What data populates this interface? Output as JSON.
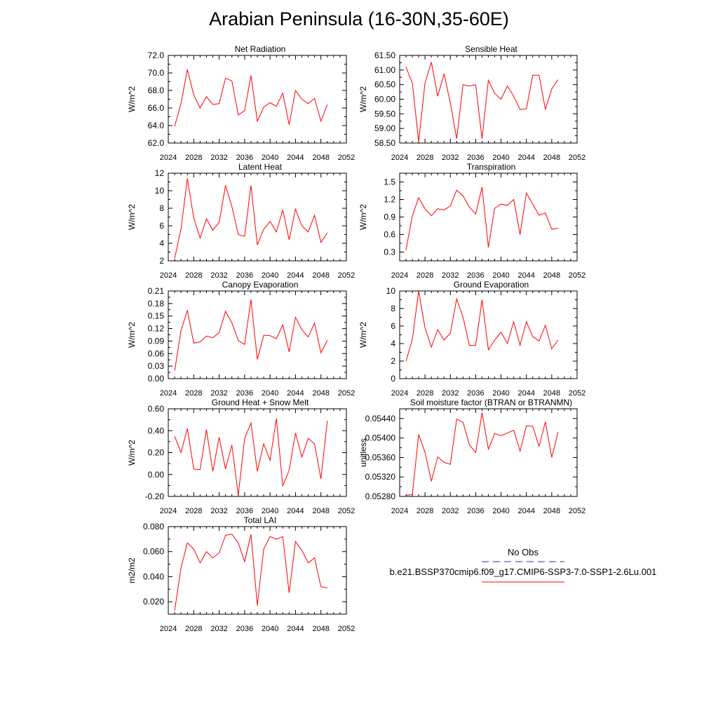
{
  "page_title": "Arabian Peninsula (16-30N,35-60E)",
  "colors": {
    "series": "#ff0000",
    "obs": "#3333aa",
    "axis": "#000000"
  },
  "legend": {
    "obs_label": "No Obs",
    "case_label": "b.e21.BSSP370cmip6.f09_g17.CMIP6-SSP3-7.0-SSP1-2.6Lu.001"
  },
  "chart_data": [
    {
      "type": "line",
      "title": "Net Radiation",
      "ylabel": "W/m^2",
      "xlim": [
        2024,
        2052
      ],
      "ylim": [
        62.0,
        72.0
      ],
      "x_ticks": [
        "2024",
        "2028",
        "2032",
        "2036",
        "2040",
        "2044",
        "2048",
        "2052"
      ],
      "y_ticks": [
        "62.0",
        "64.0",
        "66.0",
        "68.0",
        "70.0",
        "72.0"
      ],
      "x": [
        2025,
        2026,
        2027,
        2028,
        2029,
        2030,
        2031,
        2032,
        2033,
        2034,
        2035,
        2036,
        2037,
        2038,
        2039,
        2040,
        2041,
        2042,
        2043,
        2044,
        2045,
        2046,
        2047,
        2048,
        2049
      ],
      "series": [
        {
          "values": [
            63.9,
            66.5,
            70.4,
            67.5,
            66.0,
            67.3,
            66.4,
            66.5,
            69.4,
            69.1,
            65.2,
            65.7,
            69.7,
            64.5,
            66.1,
            66.6,
            66.2,
            67.7,
            64.1,
            68.0,
            67.0,
            66.5,
            67.1,
            64.5,
            66.4
          ]
        }
      ]
    },
    {
      "type": "line",
      "title": "Sensible Heat",
      "ylabel": "W/m^2",
      "xlim": [
        2024,
        2052
      ],
      "ylim": [
        58.5,
        61.5
      ],
      "x_ticks": [
        "2024",
        "2028",
        "2032",
        "2036",
        "2040",
        "2044",
        "2048",
        "2052"
      ],
      "y_ticks": [
        "58.50",
        "59.00",
        "59.50",
        "60.00",
        "60.50",
        "61.00",
        "61.50"
      ],
      "x": [
        2025,
        2026,
        2027,
        2028,
        2029,
        2030,
        2031,
        2032,
        2033,
        2034,
        2035,
        2036,
        2037,
        2038,
        2039,
        2040,
        2041,
        2042,
        2043,
        2044,
        2045,
        2046,
        2047,
        2048,
        2049
      ],
      "series": [
        {
          "values": [
            61.1,
            60.55,
            58.55,
            60.55,
            61.27,
            60.1,
            60.87,
            59.87,
            58.65,
            60.5,
            60.45,
            60.5,
            58.65,
            60.65,
            60.2,
            60.0,
            60.45,
            60.1,
            59.65,
            59.67,
            60.82,
            60.82,
            59.65,
            60.35,
            60.67
          ]
        }
      ]
    },
    {
      "type": "line",
      "title": "Latent Heat",
      "ylabel": "W/m^2",
      "xlim": [
        2024,
        2052
      ],
      "ylim": [
        2,
        12
      ],
      "x_ticks": [
        "2024",
        "2028",
        "2032",
        "2036",
        "2040",
        "2044",
        "2048",
        "2052"
      ],
      "y_ticks": [
        "2",
        "4",
        "6",
        "8",
        "10",
        "12"
      ],
      "x": [
        2025,
        2026,
        2027,
        2028,
        2029,
        2030,
        2031,
        2032,
        2033,
        2034,
        2035,
        2036,
        2037,
        2038,
        2039,
        2040,
        2041,
        2042,
        2043,
        2044,
        2045,
        2046,
        2047,
        2048,
        2049
      ],
      "series": [
        {
          "values": [
            2.3,
            5.6,
            11.4,
            6.9,
            4.6,
            6.8,
            5.5,
            6.4,
            10.6,
            8.2,
            5.0,
            4.8,
            10.6,
            3.8,
            5.6,
            6.5,
            5.3,
            7.8,
            4.4,
            7.9,
            6.0,
            5.3,
            7.2,
            4.1,
            5.2
          ]
        }
      ]
    },
    {
      "type": "line",
      "title": "Transpiration",
      "ylabel": "W/m^2",
      "xlim": [
        2024,
        2052
      ],
      "ylim": [
        0.15,
        1.65
      ],
      "x_ticks": [
        "2024",
        "2028",
        "2032",
        "2036",
        "2040",
        "2044",
        "2048",
        "2052"
      ],
      "y_ticks": [
        "0.3",
        "0.6",
        "0.9",
        "1.2",
        "1.5"
      ],
      "x": [
        2025,
        2026,
        2027,
        2028,
        2029,
        2030,
        2031,
        2032,
        2033,
        2034,
        2035,
        2036,
        2037,
        2038,
        2039,
        2040,
        2041,
        2042,
        2043,
        2044,
        2045,
        2046,
        2047,
        2048,
        2049
      ],
      "series": [
        {
          "values": [
            0.34,
            0.92,
            1.23,
            1.04,
            0.92,
            1.04,
            1.02,
            1.09,
            1.36,
            1.26,
            1.07,
            0.95,
            1.41,
            0.38,
            1.05,
            1.12,
            1.1,
            1.2,
            0.6,
            1.31,
            1.12,
            0.93,
            0.97,
            0.69,
            0.71
          ]
        }
      ]
    },
    {
      "type": "line",
      "title": "Canopy Evaporation",
      "ylabel": "W/m^2",
      "xlim": [
        2024,
        2052
      ],
      "ylim": [
        0.0,
        0.21
      ],
      "x_ticks": [
        "2024",
        "2028",
        "2032",
        "2036",
        "2040",
        "2044",
        "2048",
        "2052"
      ],
      "y_ticks": [
        "0.00",
        "0.03",
        "0.06",
        "0.09",
        "0.12",
        "0.15",
        "0.18",
        "0.21"
      ],
      "x": [
        2025,
        2026,
        2027,
        2028,
        2029,
        2030,
        2031,
        2032,
        2033,
        2034,
        2035,
        2036,
        2037,
        2038,
        2039,
        2040,
        2041,
        2042,
        2043,
        2044,
        2045,
        2046,
        2047,
        2048,
        2049
      ],
      "series": [
        {
          "values": [
            0.019,
            0.115,
            0.164,
            0.085,
            0.088,
            0.102,
            0.098,
            0.11,
            0.161,
            0.134,
            0.091,
            0.082,
            0.19,
            0.046,
            0.104,
            0.103,
            0.096,
            0.129,
            0.064,
            0.147,
            0.117,
            0.1,
            0.133,
            0.062,
            0.092
          ]
        }
      ]
    },
    {
      "type": "line",
      "title": "Ground Evaporation",
      "ylabel": "W/m^2",
      "xlim": [
        2024,
        2052
      ],
      "ylim": [
        0,
        10
      ],
      "x_ticks": [
        "2024",
        "2028",
        "2032",
        "2036",
        "2040",
        "2044",
        "2048",
        "2052"
      ],
      "y_ticks": [
        "0",
        "2",
        "4",
        "6",
        "8",
        "10"
      ],
      "x": [
        2025,
        2026,
        2027,
        2028,
        2029,
        2030,
        2031,
        2032,
        2033,
        2034,
        2035,
        2036,
        2037,
        2038,
        2039,
        2040,
        2041,
        2042,
        2043,
        2044,
        2045,
        2046,
        2047,
        2048,
        2049
      ],
      "series": [
        {
          "values": [
            2.0,
            4.5,
            10.0,
            5.8,
            3.6,
            5.6,
            4.4,
            5.2,
            9.1,
            7.0,
            3.8,
            3.8,
            9.0,
            3.3,
            4.4,
            5.3,
            4.0,
            6.5,
            3.8,
            6.5,
            4.8,
            4.3,
            6.1,
            3.4,
            4.4
          ]
        }
      ]
    },
    {
      "type": "line",
      "title": "Ground Heat + Snow Melt",
      "ylabel": "W/m^2",
      "xlim": [
        2024,
        2052
      ],
      "ylim": [
        -0.2,
        0.6
      ],
      "x_ticks": [
        "2024",
        "2028",
        "2032",
        "2036",
        "2040",
        "2044",
        "2048",
        "2052"
      ],
      "y_ticks": [
        "-0.20",
        "0.00",
        "0.20",
        "0.40",
        "0.60"
      ],
      "x": [
        2025,
        2026,
        2027,
        2028,
        2029,
        2030,
        2031,
        2032,
        2033,
        2034,
        2035,
        2036,
        2037,
        2038,
        2039,
        2040,
        2041,
        2042,
        2043,
        2044,
        2045,
        2046,
        2047,
        2048,
        2049
      ],
      "series": [
        {
          "values": [
            0.35,
            0.2,
            0.42,
            0.05,
            0.045,
            0.41,
            0.03,
            0.34,
            0.05,
            0.27,
            -0.19,
            0.33,
            0.47,
            0.03,
            0.28,
            0.13,
            0.51,
            -0.105,
            0.04,
            0.38,
            0.16,
            0.33,
            0.28,
            -0.04,
            0.49
          ]
        }
      ]
    },
    {
      "type": "line",
      "title": "Soil moisture factor (BTRAN or BTRANMN)",
      "ylabel": "unitless",
      "xlim": [
        2024,
        2052
      ],
      "ylim": [
        0.0528,
        0.0546
      ],
      "x_ticks": [
        "2024",
        "2028",
        "2032",
        "2036",
        "2040",
        "2044",
        "2048",
        "2052"
      ],
      "y_ticks": [
        "0.05280",
        "0.05320",
        "0.05360",
        "0.05400",
        "0.05440"
      ],
      "x": [
        2025,
        2026,
        2027,
        2028,
        2029,
        2030,
        2031,
        2032,
        2033,
        2034,
        2035,
        2036,
        2037,
        2038,
        2039,
        2040,
        2041,
        2042,
        2043,
        2044,
        2045,
        2046,
        2047,
        2048,
        2049
      ],
      "series": [
        {
          "values": [
            0.05282,
            0.05284,
            0.05407,
            0.05371,
            0.05311,
            0.05361,
            0.0535,
            0.05346,
            0.05439,
            0.05432,
            0.05386,
            0.0537,
            0.05452,
            0.05377,
            0.05409,
            0.05405,
            0.0541,
            0.05416,
            0.05373,
            0.05425,
            0.05424,
            0.05383,
            0.05433,
            0.0536,
            0.05412
          ]
        }
      ]
    },
    {
      "type": "line",
      "title": "Total LAI",
      "ylabel": "m2/m2",
      "xlim": [
        2024,
        2052
      ],
      "ylim": [
        0.01,
        0.08
      ],
      "x_ticks": [
        "2024",
        "2028",
        "2032",
        "2036",
        "2040",
        "2044",
        "2048",
        "2052"
      ],
      "y_ticks": [
        "0.020",
        "0.040",
        "0.060",
        "0.080"
      ],
      "x": [
        2025,
        2026,
        2027,
        2028,
        2029,
        2030,
        2031,
        2032,
        2033,
        2034,
        2035,
        2036,
        2037,
        2038,
        2039,
        2040,
        2041,
        2042,
        2043,
        2044,
        2045,
        2046,
        2047,
        2048,
        2049
      ],
      "series": [
        {
          "values": [
            0.013,
            0.047,
            0.067,
            0.062,
            0.051,
            0.06,
            0.055,
            0.059,
            0.073,
            0.074,
            0.067,
            0.052,
            0.074,
            0.017,
            0.062,
            0.072,
            0.07,
            0.072,
            0.027,
            0.068,
            0.061,
            0.051,
            0.055,
            0.032,
            0.031
          ]
        }
      ]
    }
  ]
}
